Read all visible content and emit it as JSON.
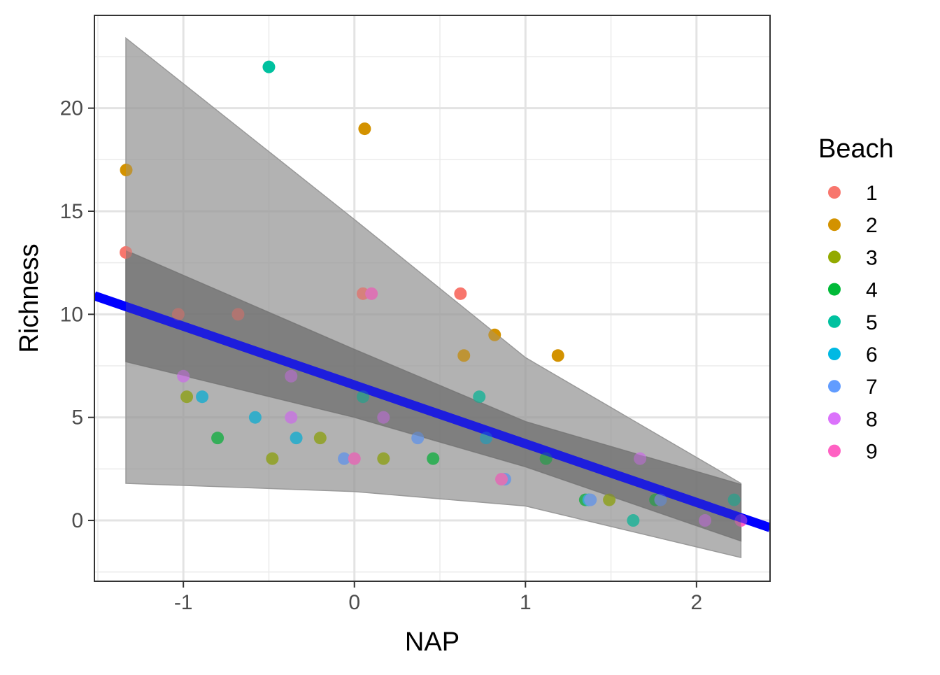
{
  "chart_data": {
    "type": "scatter",
    "xlabel": "NAP",
    "ylabel": "Richness",
    "xlim": [
      -1.52,
      2.43
    ],
    "ylim": [
      -2.95,
      24.5
    ],
    "x_ticks": [
      -1,
      0,
      1,
      2
    ],
    "x_tick_labels": [
      "-1",
      "0",
      "1",
      "2"
    ],
    "y_ticks": [
      0,
      5,
      10,
      15,
      20
    ],
    "y_tick_labels": [
      "0",
      "5",
      "10",
      "15",
      "20"
    ],
    "grid": true,
    "legend": {
      "title": "Beach",
      "position": "right",
      "entries": [
        {
          "label": "1",
          "color": "#F8766D"
        },
        {
          "label": "2",
          "color": "#D39200"
        },
        {
          "label": "3",
          "color": "#93AA00"
        },
        {
          "label": "4",
          "color": "#00BA38"
        },
        {
          "label": "5",
          "color": "#00C19F"
        },
        {
          "label": "6",
          "color": "#00B9E3"
        },
        {
          "label": "7",
          "color": "#619CFF"
        },
        {
          "label": "8",
          "color": "#DB72FB"
        },
        {
          "label": "9",
          "color": "#FF61C3"
        }
      ]
    },
    "points": [
      {
        "x": -1.336,
        "y": 13,
        "beach": "1"
      },
      {
        "x": -1.03,
        "y": 10,
        "beach": "1"
      },
      {
        "x": -0.68,
        "y": 10,
        "beach": "1"
      },
      {
        "x": 0.05,
        "y": 11,
        "beach": "1"
      },
      {
        "x": 0.62,
        "y": 11,
        "beach": "1"
      },
      {
        "x": -1.334,
        "y": 17,
        "beach": "2"
      },
      {
        "x": 0.06,
        "y": 19,
        "beach": "2"
      },
      {
        "x": 0.64,
        "y": 8,
        "beach": "2"
      },
      {
        "x": 0.82,
        "y": 9,
        "beach": "2"
      },
      {
        "x": 1.19,
        "y": 8,
        "beach": "2"
      },
      {
        "x": -0.98,
        "y": 6,
        "beach": "3"
      },
      {
        "x": -0.48,
        "y": 3,
        "beach": "3"
      },
      {
        "x": -0.2,
        "y": 4,
        "beach": "3"
      },
      {
        "x": 0.17,
        "y": 3,
        "beach": "3"
      },
      {
        "x": 1.49,
        "y": 1,
        "beach": "3"
      },
      {
        "x": -0.8,
        "y": 4,
        "beach": "4"
      },
      {
        "x": 0.46,
        "y": 3,
        "beach": "4"
      },
      {
        "x": 1.12,
        "y": 3,
        "beach": "4"
      },
      {
        "x": 1.35,
        "y": 1,
        "beach": "4"
      },
      {
        "x": 1.76,
        "y": 1,
        "beach": "4"
      },
      {
        "x": -0.5,
        "y": 22,
        "beach": "5"
      },
      {
        "x": 0.05,
        "y": 6,
        "beach": "5"
      },
      {
        "x": 0.73,
        "y": 6,
        "beach": "5"
      },
      {
        "x": 1.63,
        "y": 0,
        "beach": "5"
      },
      {
        "x": 2.22,
        "y": 1,
        "beach": "5"
      },
      {
        "x": -0.89,
        "y": 6,
        "beach": "6"
      },
      {
        "x": -0.58,
        "y": 5,
        "beach": "6"
      },
      {
        "x": -0.34,
        "y": 4,
        "beach": "6"
      },
      {
        "x": 0.77,
        "y": 4,
        "beach": "6"
      },
      {
        "x": 1.37,
        "y": 1,
        "beach": "6"
      },
      {
        "x": -0.06,
        "y": 3,
        "beach": "7"
      },
      {
        "x": 0.37,
        "y": 4,
        "beach": "7"
      },
      {
        "x": 0.88,
        "y": 2,
        "beach": "7"
      },
      {
        "x": 1.38,
        "y": 1,
        "beach": "7"
      },
      {
        "x": 1.79,
        "y": 1,
        "beach": "7"
      },
      {
        "x": -1.0,
        "y": 7,
        "beach": "8"
      },
      {
        "x": -0.37,
        "y": 7,
        "beach": "8"
      },
      {
        "x": -0.37,
        "y": 5,
        "beach": "8"
      },
      {
        "x": 0.17,
        "y": 5,
        "beach": "8"
      },
      {
        "x": 1.67,
        "y": 3,
        "beach": "8"
      },
      {
        "x": 2.05,
        "y": 0,
        "beach": "8"
      },
      {
        "x": 0.0,
        "y": 3,
        "beach": "9"
      },
      {
        "x": 0.1,
        "y": 11,
        "beach": "9"
      },
      {
        "x": 0.86,
        "y": 2,
        "beach": "9"
      },
      {
        "x": 2.26,
        "y": 0,
        "beach": "9"
      }
    ],
    "regression_line": {
      "color": "#0000FF",
      "x": [
        -1.52,
        2.43
      ],
      "y": [
        10.9,
        -0.35
      ]
    },
    "ribbon_outer": {
      "x": [
        -1.336,
        0.0,
        1.0,
        2.26
      ],
      "upper": [
        23.4,
        14.6,
        7.9,
        1.8
      ],
      "lower": [
        1.8,
        1.4,
        0.7,
        -1.8
      ]
    },
    "ribbon_inner": {
      "x": [
        -1.336,
        0.0,
        1.0,
        2.26
      ],
      "upper": [
        13.1,
        8.3,
        4.8,
        1.75
      ],
      "lower": [
        7.7,
        5.0,
        2.6,
        -1.0
      ]
    }
  }
}
